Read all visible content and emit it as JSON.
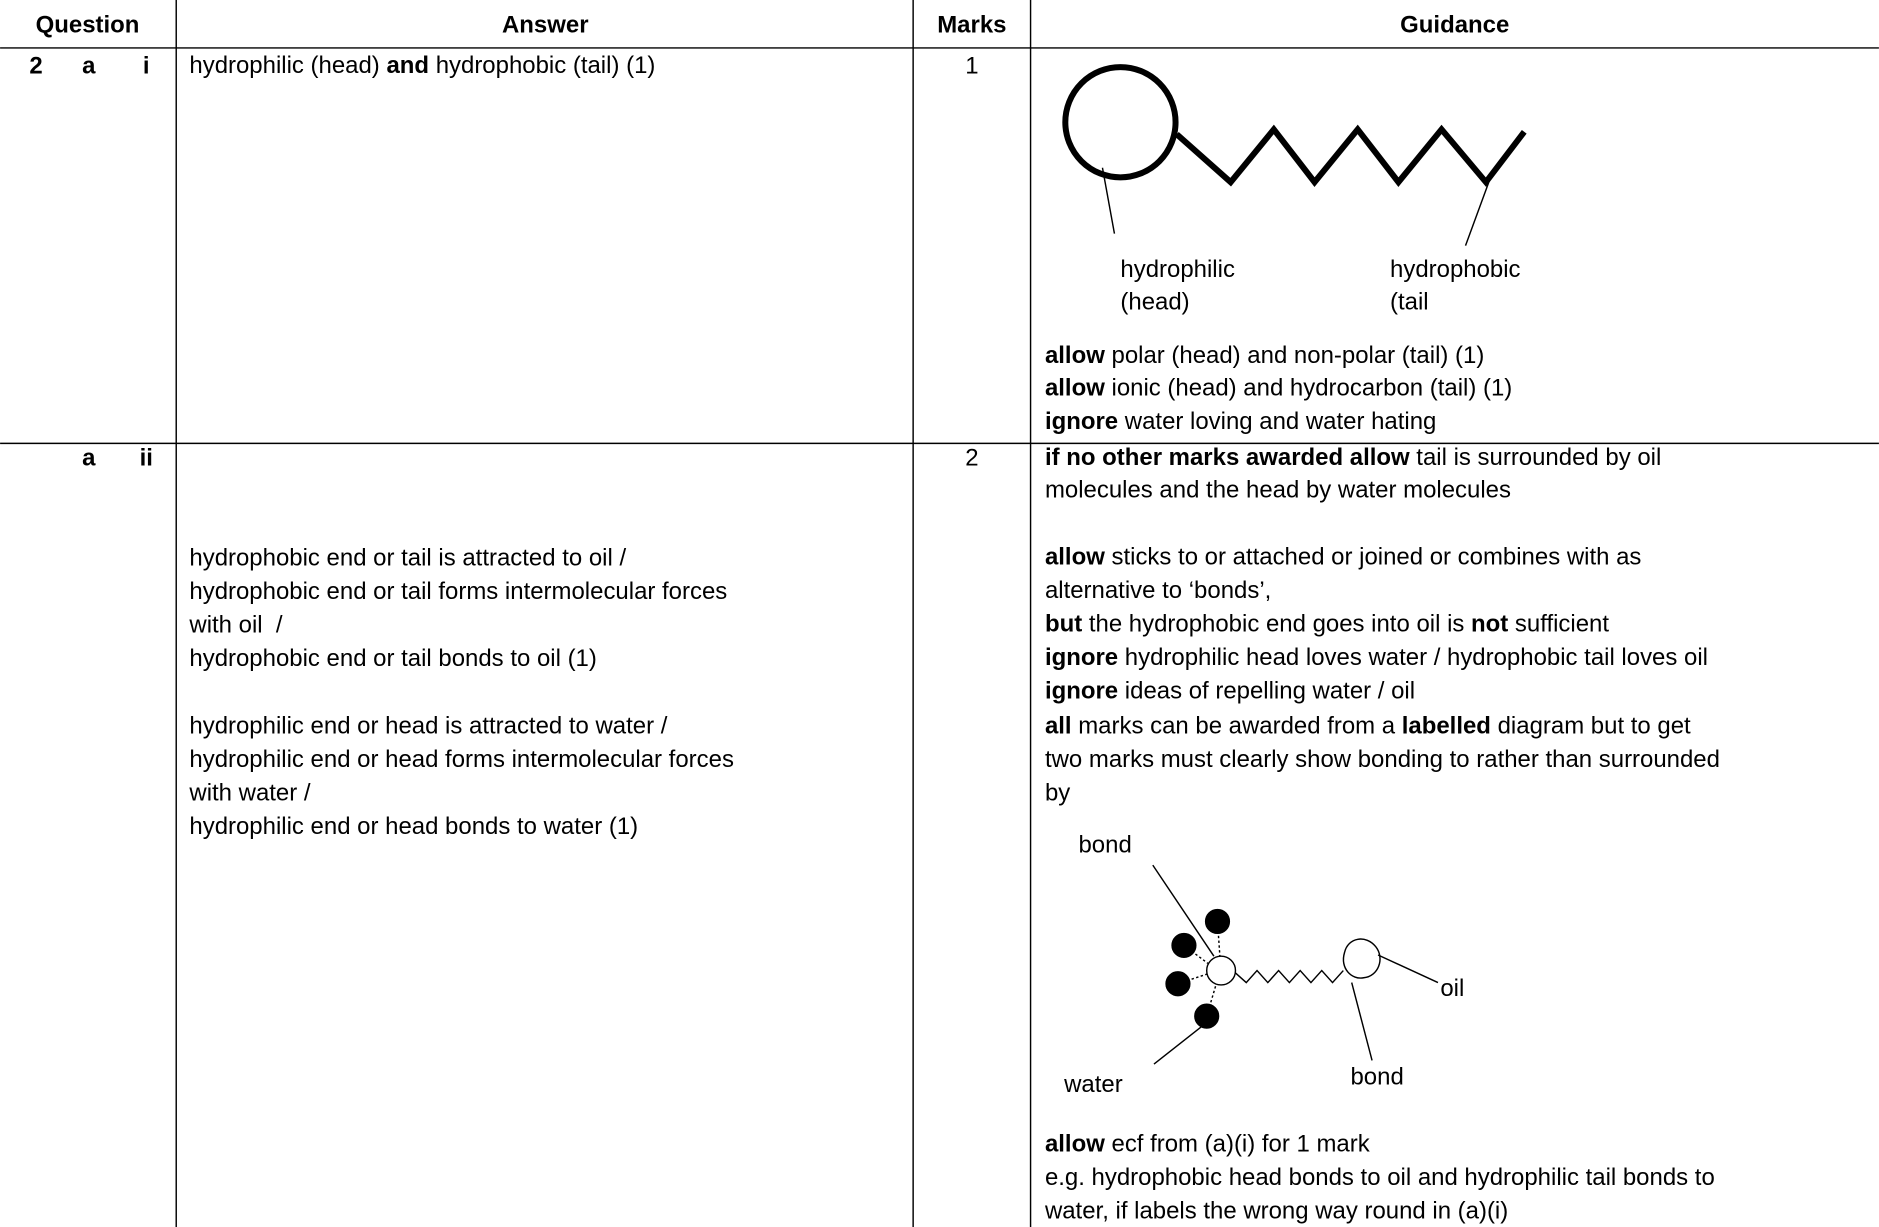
{
  "table": {
    "headers": [
      "Question",
      "Answer",
      "Marks",
      "Guidance"
    ],
    "rows": [
      {
        "question": [
          "2",
          "a",
          "i"
        ],
        "answer": [
          [
            {
              "text": "hydrophilic (head) "
            },
            {
              "text": "and",
              "bold": true
            },
            {
              "text": " hydrophobic (tail) (1)"
            }
          ]
        ],
        "marks": 1,
        "diagram": {
          "labels": [
            "hydrophilic",
            "(head)",
            "hydrophobic",
            "(tail"
          ]
        },
        "guidance": [
          [
            {
              "text": "allow",
              "bold": true
            },
            {
              "text": " polar (head) and non-polar (tail) (1)"
            }
          ],
          [
            {
              "text": "allow",
              "bold": true
            },
            {
              "text": " ionic (head) and hydrocarbon (tail) (1)"
            }
          ],
          [
            {
              "text": "ignore",
              "bold": true
            },
            {
              "text": " water loving and water hating"
            }
          ]
        ]
      },
      {
        "question": [
          "a",
          "ii"
        ],
        "answer": [
          [
            {
              "text": "hydrophobic end or tail is attracted to oil /"
            }
          ],
          [
            {
              "text": "hydrophobic end or tail forms intermolecular forces"
            }
          ],
          [
            {
              "text": "with oil  /"
            }
          ],
          [
            {
              "text": "hydrophobic end or tail bonds to oil (1)"
            }
          ],
          [
            {
              "text": "hydrophilic end or head is attracted to water /"
            }
          ],
          [
            {
              "text": "hydrophilic end or head forms intermolecular forces"
            }
          ],
          [
            {
              "text": "with water /"
            }
          ],
          [
            {
              "text": "hydrophilic end or head bonds to water (1)"
            }
          ]
        ],
        "marks": 2,
        "diagram": {
          "labels": [
            "bond",
            "oil",
            "water",
            "bond"
          ]
        },
        "guidance": [
          [
            {
              "text": "if no other marks awarded allow",
              "bold": true
            },
            {
              "text": " tail is surrounded by oil"
            }
          ],
          [
            {
              "text": "molecules and the head by water molecules"
            }
          ],
          [
            {
              "text": "allow",
              "bold": true
            },
            {
              "text": " sticks to or attached or joined or combines with as"
            }
          ],
          [
            {
              "text": "alternative to ‘bonds’,"
            }
          ],
          [
            {
              "text": "but",
              "bold": true
            },
            {
              "text": " the hydrophobic end goes into oil is "
            },
            {
              "text": "not",
              "bold": true
            },
            {
              "text": " sufficient"
            }
          ],
          [
            {
              "text": "ignore",
              "bold": true
            },
            {
              "text": " hydrophilic head loves water / hydrophobic tail loves oil"
            }
          ],
          [
            {
              "text": "ignore",
              "bold": true
            },
            {
              "text": " ideas of repelling water / oil"
            }
          ],
          [
            {
              "text": "all",
              "bold": true
            },
            {
              "text": " marks can be awarded from a "
            },
            {
              "text": "labelled",
              "bold": true
            },
            {
              "text": " diagram but to get"
            }
          ],
          [
            {
              "text": "two marks must clearly show bonding to rather than surrounded"
            }
          ],
          [
            {
              "text": "by"
            }
          ],
          [
            {
              "text": "allow",
              "bold": true
            },
            {
              "text": " ecf from (a)(i) for 1 mark"
            }
          ],
          [
            {
              "text": "e.g. hydrophobic head bonds to oil and hydrophilic tail bonds to"
            }
          ],
          [
            {
              "text": "water, if labels the wrong way round in (a)(i)"
            }
          ]
        ]
      }
    ]
  }
}
